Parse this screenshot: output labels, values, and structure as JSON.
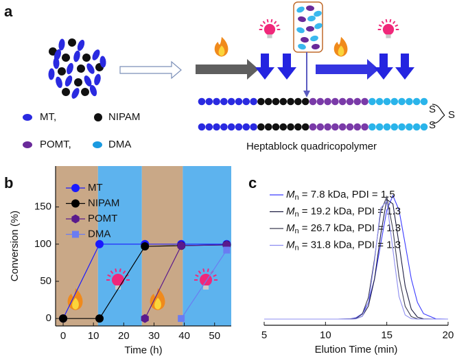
{
  "scheme": {
    "label": "a",
    "legend": [
      "MT,",
      "NIPAM",
      "POMT,",
      "DMA"
    ],
    "product": "Heptablock quadricopolymer",
    "sulfur": [
      "S",
      "S",
      "S"
    ]
  },
  "chart_data": [
    {
      "type": "line",
      "panel_label": "b",
      "x_label": "Time (h)",
      "y_label": "Conversion (%)",
      "xlim": [
        -2.5,
        55.5
      ],
      "ylim": [
        -10,
        205
      ],
      "xticks": [
        0,
        10,
        20,
        30,
        40,
        50
      ],
      "yticks": [
        0,
        50,
        100,
        150
      ],
      "regions": [
        {
          "start": -2.5,
          "end": 11.5,
          "color": "#c9a887"
        },
        {
          "start": 11.5,
          "end": 26,
          "color": "#5db3ee"
        },
        {
          "start": 26,
          "end": 39.5,
          "color": "#c9a887"
        },
        {
          "start": 39.5,
          "end": 55.5,
          "color": "#5db3ee"
        }
      ],
      "legend": "upper left",
      "series": [
        {
          "name": "MT",
          "color": "#1a1aff",
          "marker": "circle",
          "x": [
            0,
            12,
            27,
            39,
            54
          ],
          "values": [
            0,
            100,
            100,
            100,
            100
          ]
        },
        {
          "name": "NIPAM",
          "color": "#000000",
          "marker": "circle",
          "x": [
            0,
            12,
            27,
            39,
            54
          ],
          "values": [
            0,
            0,
            97,
            98,
            99
          ]
        },
        {
          "name": "POMT",
          "color": "#5a1a8c",
          "marker": "hexagon",
          "x": [
            27,
            39,
            54
          ],
          "values": [
            0,
            98,
            99
          ]
        },
        {
          "name": "DMA",
          "color": "#6a7cf2",
          "marker": "square",
          "x": [
            39,
            54
          ],
          "values": [
            0,
            92
          ]
        }
      ]
    },
    {
      "type": "line",
      "panel_label": "c",
      "x_label": "Elution Time (min)",
      "xlim": [
        5,
        20
      ],
      "ylim": [
        -0.05,
        1.15
      ],
      "xticks": [
        5,
        10,
        15,
        20
      ],
      "x": [
        5,
        11,
        12,
        12.5,
        13,
        13.5,
        14,
        14.5,
        15,
        15.5,
        16,
        16.5,
        17,
        17.5,
        18,
        19,
        20
      ],
      "series": [
        {
          "name": "Mn = 7.8 kDa, PDI = 1.5",
          "color": "#3a3aff",
          "values": [
            0,
            0,
            0.002,
            0.011,
            0.044,
            0.135,
            0.325,
            0.607,
            0.882,
            1,
            0.882,
            0.607,
            0.325,
            0.135,
            0.044,
            0.002,
            0
          ]
        },
        {
          "name": "Mn = 19.2 kDa, PDI = 1.3",
          "color": "#1c1c40",
          "values": [
            0,
            0,
            0,
            0.003,
            0.023,
            0.105,
            0.325,
            0.682,
            0.969,
            0.932,
            0.607,
            0.267,
            0.08,
            0.016,
            0.002,
            0,
            0
          ]
        },
        {
          "name": "Mn = 26.7 kDa, PDI = 1.3",
          "color": "#3c3c50",
          "values": [
            0,
            0,
            0.001,
            0.006,
            0.04,
            0.175,
            0.487,
            0.867,
            0.991,
            0.726,
            0.341,
            0.103,
            0.02,
            0.002,
            0,
            0,
            0
          ]
        },
        {
          "name": "Mn = 31.8 kDa, PDI = 1.3",
          "color": "#8c8cf0",
          "values": [
            0,
            0,
            0,
            0.002,
            0.022,
            0.135,
            0.469,
            0.899,
            0.954,
            0.56,
            0.182,
            0.033,
            0.003,
            0,
            0,
            0,
            0
          ]
        }
      ]
    }
  ]
}
